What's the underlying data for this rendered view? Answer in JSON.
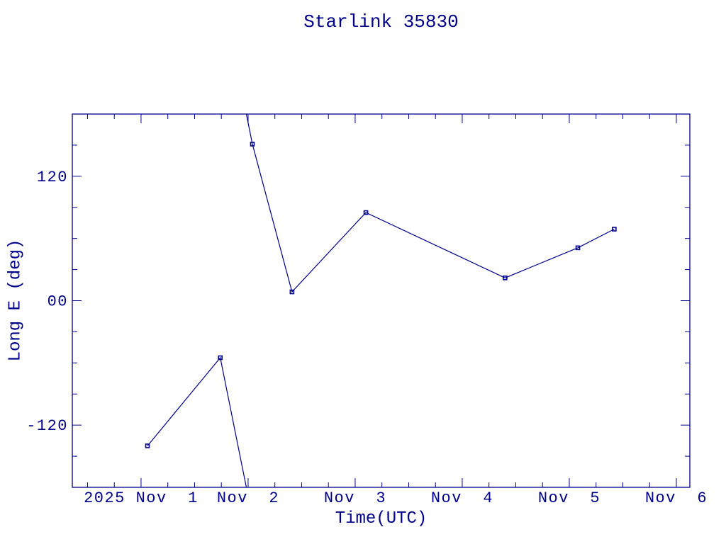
{
  "title": "Starlink 35830",
  "chart_data": {
    "type": "line",
    "title": "Starlink 35830",
    "xlabel": "Time(UTC)",
    "ylabel": "Long E (deg)",
    "line_color": "#00008B",
    "background_color": "#ffffff",
    "marker": "open-square",
    "grid": false,
    "legend": "none",
    "x_unit": "days since 2025 Nov 1 00:00 UTC",
    "xlim": [
      -0.642,
      5.126
    ],
    "ylim": [
      -180,
      180
    ],
    "x_major_ticks": [
      {
        "t": 0,
        "label": "2025 Nov  1"
      },
      {
        "t": 1,
        "label": "Nov  2"
      },
      {
        "t": 2,
        "label": "Nov  3"
      },
      {
        "t": 3,
        "label": "Nov  4"
      },
      {
        "t": 4,
        "label": "Nov  5"
      },
      {
        "t": 5,
        "label": "Nov  6"
      }
    ],
    "x_minor_step": 0.25,
    "y_major_ticks": [
      {
        "v": 120,
        "label": "120"
      },
      {
        "v": 0,
        "label": "00"
      },
      {
        "v": -120,
        "label": "-120"
      }
    ],
    "y_minor_step": 30,
    "wrap_degrees": 360,
    "points": [
      {
        "t": 0.06,
        "lon": -140
      },
      {
        "t": 0.74,
        "lon": -55
      },
      {
        "t": 1.04,
        "lon": 151
      },
      {
        "t": 1.41,
        "lon": 8.5
      },
      {
        "t": 2.1,
        "lon": 85
      },
      {
        "t": 3.4,
        "lon": 22
      },
      {
        "t": 4.08,
        "lon": 51
      },
      {
        "t": 4.42,
        "lon": 69
      }
    ]
  }
}
